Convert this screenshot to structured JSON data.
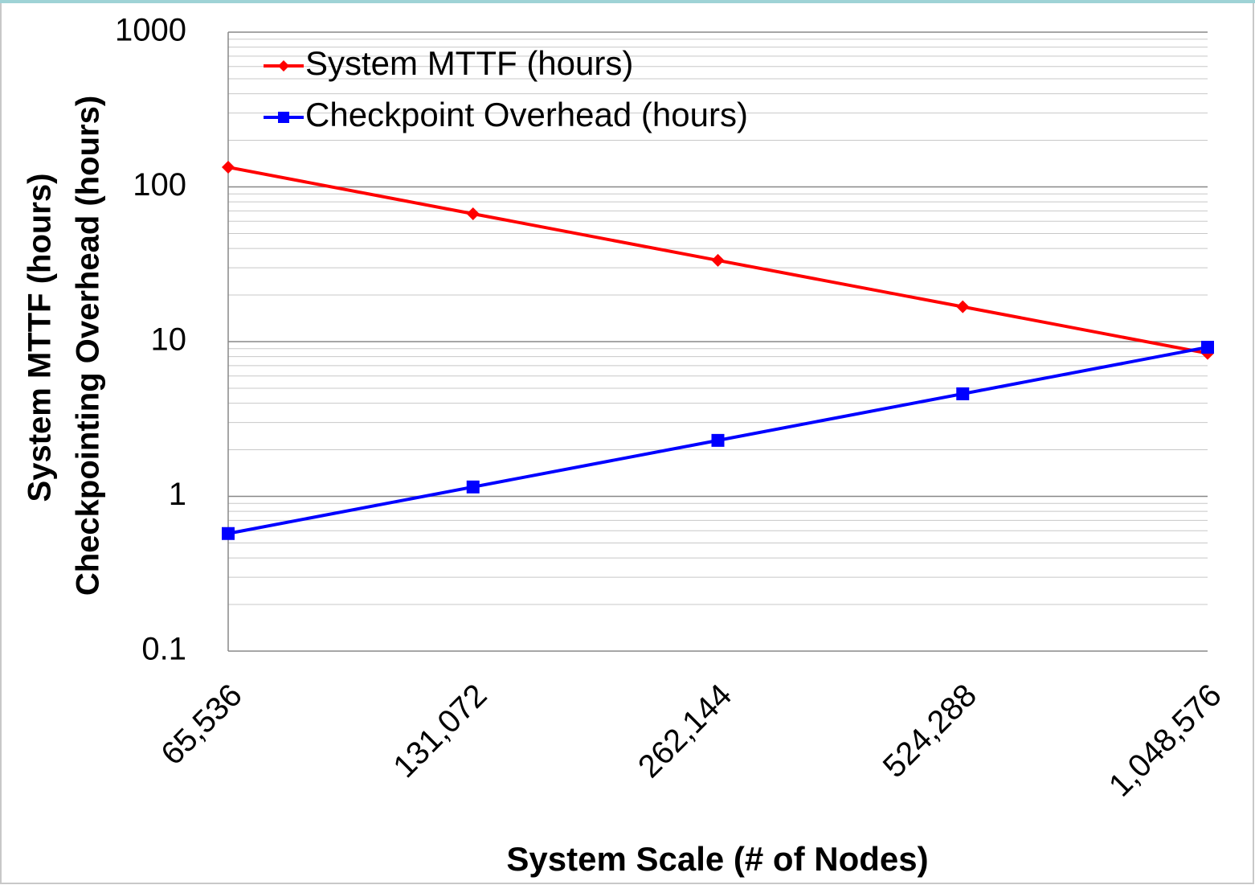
{
  "chart_data": {
    "type": "line",
    "categories": [
      "65,536",
      "131,072",
      "262,144",
      "524,288",
      "1,048,576"
    ],
    "series": [
      {
        "name": "System MTTF (hours)",
        "color": "#ff0000",
        "marker": "diamond",
        "values": [
          134,
          67,
          33.5,
          16.8,
          8.4
        ]
      },
      {
        "name": "Checkpoint Overhead (hours)",
        "color": "#0000ff",
        "marker": "square",
        "values": [
          0.575,
          1.15,
          2.3,
          4.6,
          9.2
        ]
      }
    ],
    "ylabel": [
      "System MTTF (hours)",
      "Checkpointing Overhead (hours)"
    ],
    "xlabel": "System Scale (# of Nodes)",
    "ylim": [
      0.1,
      1000
    ],
    "yticks": [
      0.1,
      1,
      10,
      100,
      1000
    ],
    "log_y": true,
    "grid": true,
    "minor_grid": true,
    "legend": "upper left"
  }
}
